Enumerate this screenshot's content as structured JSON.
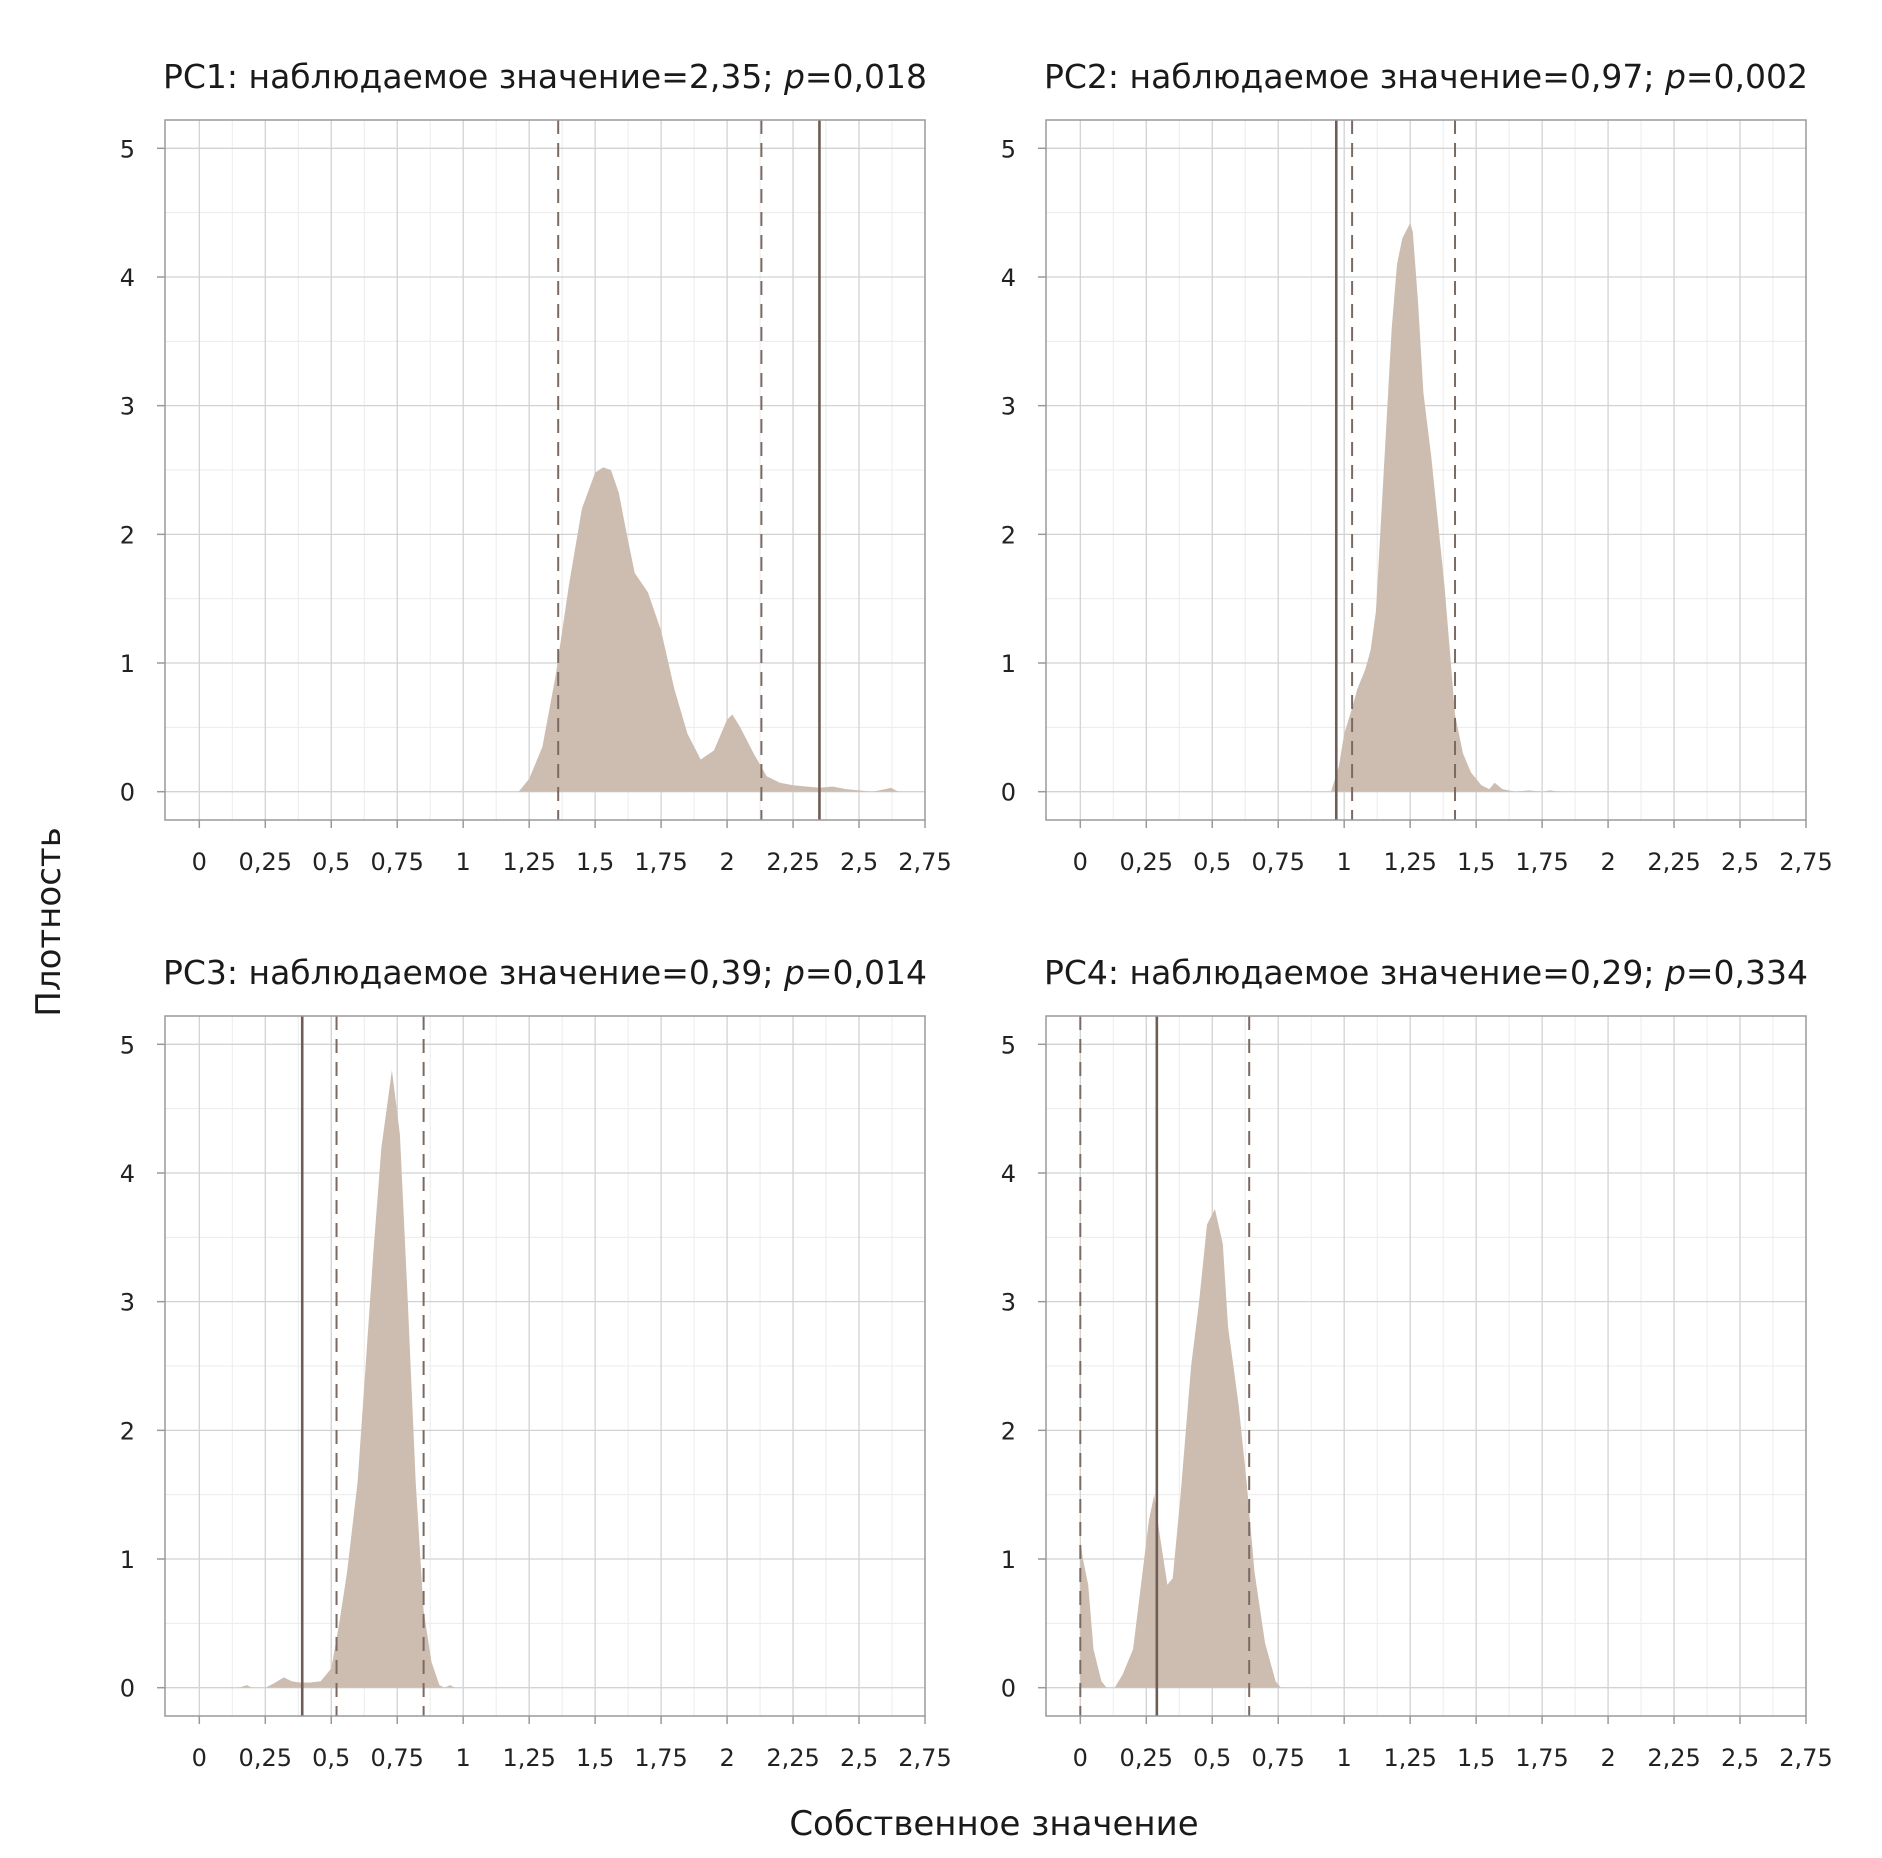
{
  "figure": {
    "xlabel": "Собственное значение",
    "ylabel": "Плотность"
  },
  "colors": {
    "density_fill": "#cdbdb1",
    "observed_line": "#6e5d55",
    "ci_line": "#7a6a62",
    "grid_major": "#d2d2d2",
    "grid_minor": "#ececec",
    "frame": "#9a9a9a"
  },
  "chart_data": [
    {
      "type": "area",
      "panel": "PC1",
      "title_prefix": "PC1: наблюдаемое значение=2,35; ",
      "title_p": "p",
      "title_suffix": "=0,018",
      "xlim": [
        -0.13,
        2.75
      ],
      "ylim": [
        -0.22,
        5.22
      ],
      "x_ticks": [
        0,
        0.25,
        0.5,
        0.75,
        1,
        1.25,
        1.5,
        1.75,
        2,
        2.25,
        2.5,
        2.75
      ],
      "x_tick_labels": [
        "0",
        "0,25",
        "0,5",
        "0,75",
        "1",
        "1,25",
        "1,5",
        "1,75",
        "2",
        "2,25",
        "2,5",
        "2,75"
      ],
      "y_ticks": [
        0,
        1,
        2,
        3,
        4,
        5
      ],
      "y_tick_labels": [
        "0",
        "1",
        "2",
        "3",
        "4",
        "5"
      ],
      "observed": 2.35,
      "ci": [
        1.36,
        2.13
      ],
      "density": {
        "x": [
          1.21,
          1.25,
          1.3,
          1.35,
          1.4,
          1.45,
          1.5,
          1.53,
          1.56,
          1.59,
          1.62,
          1.65,
          1.7,
          1.75,
          1.8,
          1.85,
          1.9,
          1.95,
          2.0,
          2.02,
          2.05,
          2.1,
          2.15,
          2.2,
          2.25,
          2.3,
          2.35,
          2.4,
          2.45,
          2.5,
          2.55,
          2.6,
          2.62,
          2.65
        ],
        "y": [
          0.0,
          0.1,
          0.35,
          0.9,
          1.6,
          2.2,
          2.48,
          2.52,
          2.5,
          2.32,
          2.0,
          1.7,
          1.55,
          1.25,
          0.8,
          0.45,
          0.25,
          0.32,
          0.56,
          0.6,
          0.5,
          0.3,
          0.12,
          0.07,
          0.05,
          0.04,
          0.03,
          0.04,
          0.02,
          0.01,
          0.0,
          0.02,
          0.03,
          0.0
        ]
      }
    },
    {
      "type": "area",
      "panel": "PC2",
      "title_prefix": "PC2: наблюдаемое значение=0,97; ",
      "title_p": "p",
      "title_suffix": "=0,002",
      "xlim": [
        -0.13,
        2.75
      ],
      "ylim": [
        -0.22,
        5.22
      ],
      "x_ticks": [
        0,
        0.25,
        0.5,
        0.75,
        1,
        1.25,
        1.5,
        1.75,
        2,
        2.25,
        2.5,
        2.75
      ],
      "x_tick_labels": [
        "0",
        "0,25",
        "0,5",
        "0,75",
        "1",
        "1,25",
        "1,5",
        "1,75",
        "2",
        "2,25",
        "2,5",
        "2,75"
      ],
      "y_ticks": [
        0,
        1,
        2,
        3,
        4,
        5
      ],
      "y_tick_labels": [
        "0",
        "1",
        "2",
        "3",
        "4",
        "5"
      ],
      "observed": 0.97,
      "ci": [
        1.03,
        1.42
      ],
      "density": {
        "x": [
          0.95,
          0.98,
          1.0,
          1.03,
          1.05,
          1.08,
          1.1,
          1.12,
          1.15,
          1.18,
          1.2,
          1.22,
          1.25,
          1.26,
          1.28,
          1.3,
          1.33,
          1.35,
          1.38,
          1.4,
          1.42,
          1.45,
          1.48,
          1.52,
          1.55,
          1.57,
          1.6,
          1.65,
          1.7,
          1.75,
          1.78,
          1.82
        ],
        "y": [
          0.0,
          0.2,
          0.45,
          0.65,
          0.8,
          0.95,
          1.1,
          1.4,
          2.5,
          3.6,
          4.1,
          4.3,
          4.42,
          4.35,
          3.8,
          3.1,
          2.6,
          2.2,
          1.6,
          1.1,
          0.6,
          0.3,
          0.15,
          0.05,
          0.02,
          0.07,
          0.02,
          0.0,
          0.01,
          0.0,
          0.01,
          0.0
        ]
      }
    },
    {
      "type": "area",
      "panel": "PC3",
      "title_prefix": "PC3: наблюдаемое значение=0,39; ",
      "title_p": "p",
      "title_suffix": "=0,014",
      "xlim": [
        -0.13,
        2.75
      ],
      "ylim": [
        -0.22,
        5.22
      ],
      "x_ticks": [
        0,
        0.25,
        0.5,
        0.75,
        1,
        1.25,
        1.5,
        1.75,
        2,
        2.25,
        2.5,
        2.75
      ],
      "x_tick_labels": [
        "0",
        "0,25",
        "0,5",
        "0,75",
        "1",
        "1,25",
        "1,5",
        "1,75",
        "2",
        "2,25",
        "2,5",
        "2,75"
      ],
      "y_ticks": [
        0,
        1,
        2,
        3,
        4,
        5
      ],
      "y_tick_labels": [
        "0",
        "1",
        "2",
        "3",
        "4",
        "5"
      ],
      "observed": 0.39,
      "ci": [
        0.52,
        0.85
      ],
      "density": {
        "x": [
          0.15,
          0.18,
          0.2,
          0.25,
          0.28,
          0.32,
          0.35,
          0.38,
          0.42,
          0.46,
          0.5,
          0.53,
          0.56,
          0.6,
          0.63,
          0.66,
          0.69,
          0.71,
          0.73,
          0.76,
          0.79,
          0.82,
          0.85,
          0.88,
          0.91,
          0.93,
          0.95,
          0.97,
          0.99
        ],
        "y": [
          0.0,
          0.02,
          0.0,
          0.0,
          0.03,
          0.08,
          0.05,
          0.04,
          0.04,
          0.05,
          0.15,
          0.5,
          0.9,
          1.6,
          2.5,
          3.4,
          4.2,
          4.5,
          4.8,
          4.3,
          3.0,
          1.6,
          0.6,
          0.2,
          0.02,
          0.0,
          0.02,
          0.0,
          0.0
        ]
      }
    },
    {
      "type": "area",
      "panel": "PC4",
      "title_prefix": "PC4: наблюдаемое значение=0,29; ",
      "title_p": "p",
      "title_suffix": "=0,334",
      "xlim": [
        -0.13,
        2.75
      ],
      "ylim": [
        -0.22,
        5.22
      ],
      "x_ticks": [
        0,
        0.25,
        0.5,
        0.75,
        1,
        1.25,
        1.5,
        1.75,
        2,
        2.25,
        2.5,
        2.75
      ],
      "x_tick_labels": [
        "0",
        "0,25",
        "0,5",
        "0,75",
        "1",
        "1,25",
        "1,5",
        "1,75",
        "2",
        "2,25",
        "2,5",
        "2,75"
      ],
      "y_ticks": [
        0,
        1,
        2,
        3,
        4,
        5
      ],
      "y_tick_labels": [
        "0",
        "1",
        "2",
        "3",
        "4",
        "5"
      ],
      "observed": 0.29,
      "ci": [
        0.0,
        0.64
      ],
      "density": {
        "x": [
          0.0,
          0.01,
          0.03,
          0.05,
          0.08,
          0.1,
          0.13,
          0.16,
          0.2,
          0.23,
          0.26,
          0.28,
          0.3,
          0.33,
          0.35,
          0.38,
          0.42,
          0.45,
          0.48,
          0.51,
          0.54,
          0.56,
          0.58,
          0.6,
          0.63,
          0.66,
          0.7,
          0.74,
          0.76
        ],
        "y": [
          1.15,
          1.0,
          0.8,
          0.3,
          0.05,
          0.0,
          0.0,
          0.1,
          0.3,
          0.8,
          1.3,
          1.5,
          1.2,
          0.8,
          0.85,
          1.5,
          2.5,
          3.0,
          3.6,
          3.72,
          3.45,
          2.8,
          2.5,
          2.2,
          1.6,
          0.9,
          0.35,
          0.05,
          0.0
        ]
      }
    }
  ]
}
